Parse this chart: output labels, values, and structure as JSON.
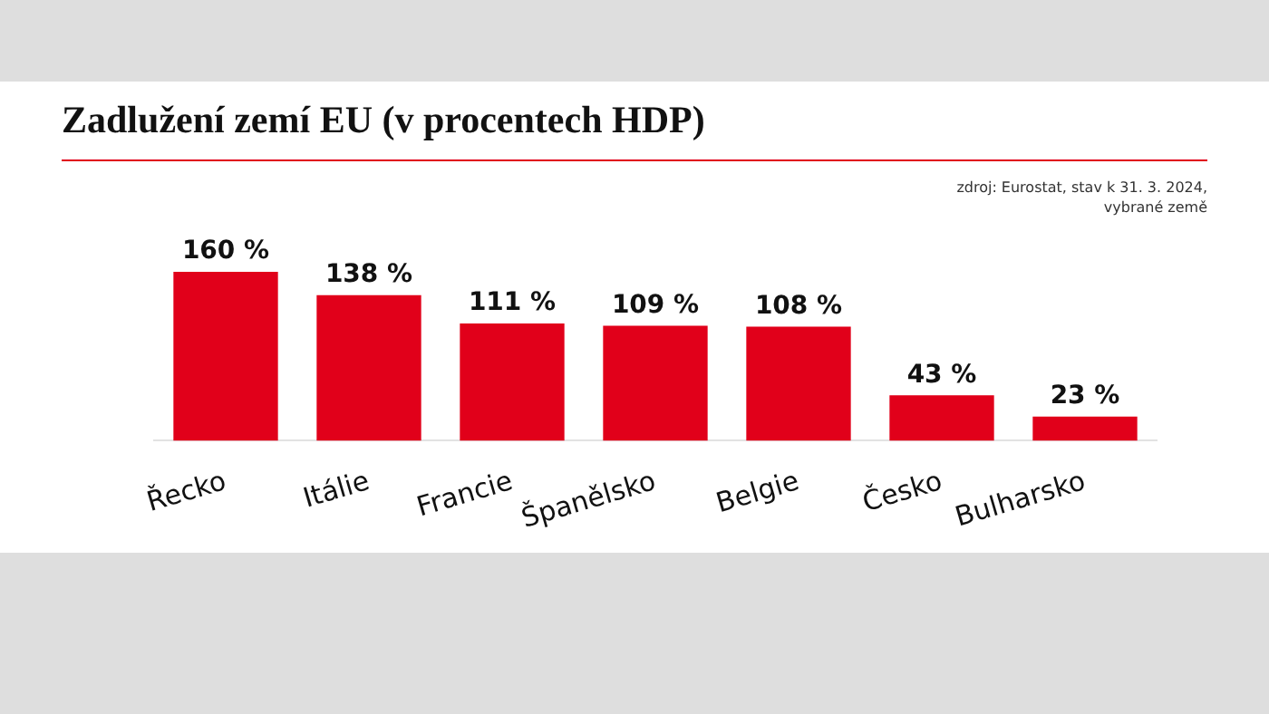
{
  "chart_data": {
    "type": "bar",
    "title": "Zadlužení zemí EU (v procentech HDP)",
    "annotations": [
      "zdroj: Eurostat, stav k 31. 3. 2024,\nvybrané země"
    ],
    "categories": [
      "Řecko",
      "Itálie",
      "Francie",
      "Španělsko",
      "Belgie",
      "Česko",
      "Bulharsko"
    ],
    "values": [
      160,
      138,
      111,
      109,
      108,
      43,
      23
    ],
    "value_labels": [
      "160 %",
      "138 %",
      "111 %",
      "109 %",
      "108 %",
      "43 %",
      "23 %"
    ],
    "color": "#e1001a",
    "grid": false,
    "legend": false,
    "tick_labels": "x"
  }
}
